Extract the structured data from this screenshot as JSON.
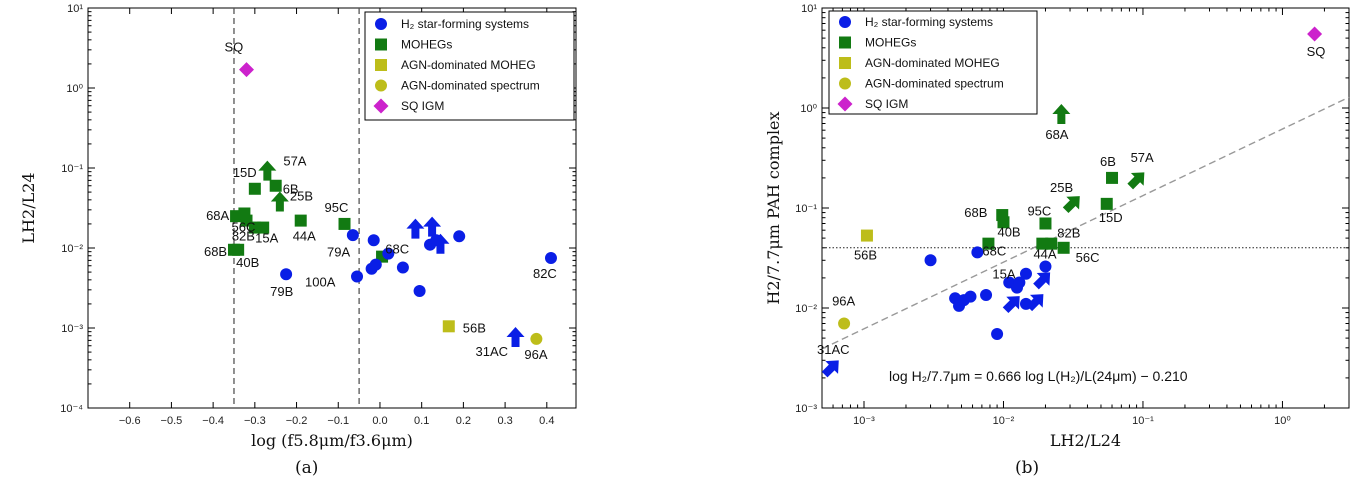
{
  "captions": {
    "a": "(a)",
    "b": "(b)"
  },
  "colors": {
    "blue": "#0a1ee6",
    "green": "#127a12",
    "yellow": "#bdbd1a",
    "magenta": "#cc22cc",
    "dashed": "#888888"
  },
  "legend_a": [
    {
      "marker": "circle",
      "color": "blue",
      "label": "H₂ star-forming systems"
    },
    {
      "marker": "square",
      "color": "green",
      "label": "MOHEGs"
    },
    {
      "marker": "square",
      "color": "yellow",
      "label": "AGN-dominated MOHEG"
    },
    {
      "marker": "circle",
      "color": "yellow",
      "label": "AGN-dominated spectrum"
    },
    {
      "marker": "diamond",
      "color": "magenta",
      "label": "SQ IGM"
    }
  ],
  "legend_b": [
    {
      "marker": "circle",
      "color": "blue",
      "label": "H₂ star-forming systems"
    },
    {
      "marker": "square",
      "color": "green",
      "label": "MOHEGs"
    },
    {
      "marker": "square",
      "color": "yellow",
      "label": "AGN-dominated MOHEG"
    },
    {
      "marker": "circle",
      "color": "yellow",
      "label": "AGN-dominated spectrum"
    },
    {
      "marker": "diamond",
      "color": "magenta",
      "label": "SQ IGM"
    }
  ],
  "chart_data": [
    {
      "type": "scatter",
      "panel": "a",
      "xlabel": "log (f5.8μm/f3.6μm)",
      "ylabel": "LH2/L24",
      "xlim": [
        -0.7,
        0.47
      ],
      "ylim": [
        0.0001,
        10
      ],
      "yscale": "log",
      "xticks": [
        "-0.6",
        "-0.5",
        "-0.4",
        "-0.3",
        "-0.2",
        "-0.1",
        "0.0",
        "0.1",
        "0.2",
        "0.3",
        "0.4"
      ],
      "yticks": [
        "10⁻⁴",
        "10⁻³",
        "10⁻²",
        "10⁻¹",
        "10⁰",
        "10¹"
      ],
      "vlines": [
        -0.35,
        -0.05
      ],
      "legend_position": "top-right",
      "points": [
        {
          "g": "green",
          "m": "square",
          "x": -0.345,
          "y": 0.025,
          "label": "68A"
        },
        {
          "g": "green",
          "m": "square",
          "x": -0.325,
          "y": 0.027,
          "label": ""
        },
        {
          "g": "green",
          "m": "square",
          "x": -0.3,
          "y": 0.055,
          "label": "15D"
        },
        {
          "g": "green",
          "m": "square",
          "x": -0.32,
          "y": 0.022,
          "label": "56C"
        },
        {
          "g": "green",
          "m": "square",
          "x": -0.3,
          "y": 0.018,
          "label": "82B"
        },
        {
          "g": "green",
          "m": "square",
          "x": -0.28,
          "y": 0.018,
          "label": "15A"
        },
        {
          "g": "green",
          "m": "square",
          "x": -0.25,
          "y": 0.06,
          "label": "6B"
        },
        {
          "g": "green",
          "m": "square",
          "x": -0.35,
          "y": 0.0095,
          "label": "68B"
        },
        {
          "g": "green",
          "m": "square",
          "x": -0.34,
          "y": 0.0095,
          "label": "40B"
        },
        {
          "g": "green",
          "m": "square",
          "x": -0.19,
          "y": 0.022,
          "label": "44A"
        },
        {
          "g": "green",
          "m": "square",
          "x": -0.085,
          "y": 0.02,
          "label": "95C"
        },
        {
          "g": "green",
          "m": "square",
          "x": 0.005,
          "y": 0.0078,
          "label": "79A"
        },
        {
          "g": "blue",
          "m": "circle",
          "x": -0.225,
          "y": 0.0047,
          "label": "79B"
        },
        {
          "g": "blue",
          "m": "circle",
          "x": -0.065,
          "y": 0.0145,
          "label": ""
        },
        {
          "g": "blue",
          "m": "circle",
          "x": -0.055,
          "y": 0.0044,
          "label": "100A"
        },
        {
          "g": "blue",
          "m": "circle",
          "x": -0.015,
          "y": 0.0125,
          "label": ""
        },
        {
          "g": "blue",
          "m": "circle",
          "x": -0.02,
          "y": 0.0055,
          "label": ""
        },
        {
          "g": "blue",
          "m": "circle",
          "x": -0.01,
          "y": 0.0062,
          "label": ""
        },
        {
          "g": "blue",
          "m": "circle",
          "x": 0.02,
          "y": 0.0085,
          "label": "68C"
        },
        {
          "g": "blue",
          "m": "circle",
          "x": 0.055,
          "y": 0.0057,
          "label": ""
        },
        {
          "g": "blue",
          "m": "circle",
          "x": 0.095,
          "y": 0.0029,
          "label": ""
        },
        {
          "g": "blue",
          "m": "circle",
          "x": 0.12,
          "y": 0.011,
          "label": ""
        },
        {
          "g": "blue",
          "m": "circle",
          "x": 0.135,
          "y": 0.0125,
          "label": ""
        },
        {
          "g": "blue",
          "m": "circle",
          "x": 0.19,
          "y": 0.014,
          "label": ""
        },
        {
          "g": "blue",
          "m": "circle",
          "x": 0.41,
          "y": 0.0075,
          "label": "82C"
        },
        {
          "g": "yellow",
          "m": "square",
          "x": 0.165,
          "y": 0.00105,
          "label": "56B"
        },
        {
          "g": "yellow",
          "m": "circle",
          "x": 0.375,
          "y": 0.00073,
          "label": "96A"
        },
        {
          "g": "magenta",
          "m": "diamond",
          "x": -0.32,
          "y": 1.7,
          "label": "SQ"
        }
      ],
      "limits": [
        {
          "g": "green",
          "x": -0.27,
          "y": 0.09,
          "dir": "up",
          "label": "57A"
        },
        {
          "g": "green",
          "x": -0.24,
          "y": 0.037,
          "dir": "up",
          "label": "25B"
        },
        {
          "g": "blue",
          "x": 0.085,
          "y": 0.017,
          "dir": "up",
          "label": ""
        },
        {
          "g": "blue",
          "x": 0.125,
          "y": 0.018,
          "dir": "up",
          "label": ""
        },
        {
          "g": "blue",
          "x": 0.145,
          "y": 0.011,
          "dir": "up",
          "label": ""
        },
        {
          "g": "blue",
          "x": 0.325,
          "y": 0.00075,
          "dir": "up",
          "label": "31AC"
        }
      ]
    },
    {
      "type": "scatter",
      "panel": "b",
      "xlabel": "LH2/L24",
      "ylabel": "H2/7.7μm PAH complex",
      "xscale": "log",
      "yscale": "log",
      "xlim": [
        0.0005,
        3
      ],
      "ylim": [
        0.001,
        10
      ],
      "xticks": [
        "10⁻³",
        "10⁻²",
        "10⁻¹",
        "10⁰"
      ],
      "yticks": [
        "10⁻³",
        "10⁻²",
        "10⁻¹",
        "10⁰",
        "10¹"
      ],
      "hline": 0.04,
      "fit": {
        "slope": 0.666,
        "intercept": -0.21
      },
      "equation": "log H₂/7.7μm = 0.666 log L(H₂)/L(24μm) − 0.210",
      "legend_position": "top-left",
      "points": [
        {
          "g": "green",
          "m": "square",
          "x": 0.0098,
          "y": 0.085,
          "label": "68B"
        },
        {
          "g": "green",
          "m": "square",
          "x": 0.01,
          "y": 0.072,
          "label": "40B"
        },
        {
          "g": "green",
          "m": "square",
          "x": 0.0078,
          "y": 0.044,
          "label": "68C"
        },
        {
          "g": "green",
          "m": "square",
          "x": 0.02,
          "y": 0.07,
          "label": "95C"
        },
        {
          "g": "green",
          "m": "square",
          "x": 0.019,
          "y": 0.044,
          "label": ""
        },
        {
          "g": "green",
          "m": "square",
          "x": 0.022,
          "y": 0.044,
          "label": "82B"
        },
        {
          "g": "green",
          "m": "square",
          "x": 0.027,
          "y": 0.04,
          "label": "56C"
        },
        {
          "g": "green",
          "m": "square",
          "x": 0.06,
          "y": 0.2,
          "label": "6B"
        },
        {
          "g": "green",
          "m": "square",
          "x": 0.055,
          "y": 0.11,
          "label": "15D"
        },
        {
          "g": "blue",
          "m": "circle",
          "x": 0.003,
          "y": 0.03,
          "label": ""
        },
        {
          "g": "blue",
          "m": "circle",
          "x": 0.0065,
          "y": 0.036,
          "label": ""
        },
        {
          "g": "blue",
          "m": "circle",
          "x": 0.0045,
          "y": 0.0125,
          "label": ""
        },
        {
          "g": "blue",
          "m": "circle",
          "x": 0.0048,
          "y": 0.0105,
          "label": ""
        },
        {
          "g": "blue",
          "m": "circle",
          "x": 0.0052,
          "y": 0.012,
          "label": ""
        },
        {
          "g": "blue",
          "m": "circle",
          "x": 0.0058,
          "y": 0.013,
          "label": ""
        },
        {
          "g": "blue",
          "m": "circle",
          "x": 0.0075,
          "y": 0.0135,
          "label": ""
        },
        {
          "g": "blue",
          "m": "circle",
          "x": 0.009,
          "y": 0.0055,
          "label": ""
        },
        {
          "g": "blue",
          "m": "circle",
          "x": 0.011,
          "y": 0.018,
          "label": ""
        },
        {
          "g": "blue",
          "m": "circle",
          "x": 0.0125,
          "y": 0.016,
          "label": ""
        },
        {
          "g": "blue",
          "m": "circle",
          "x": 0.013,
          "y": 0.018,
          "label": "15A"
        },
        {
          "g": "blue",
          "m": "circle",
          "x": 0.0145,
          "y": 0.022,
          "label": ""
        },
        {
          "g": "blue",
          "m": "circle",
          "x": 0.0145,
          "y": 0.011,
          "label": ""
        },
        {
          "g": "blue",
          "m": "circle",
          "x": 0.02,
          "y": 0.026,
          "label": "44A"
        },
        {
          "g": "yellow",
          "m": "square",
          "x": 0.00105,
          "y": 0.053,
          "label": "56B"
        },
        {
          "g": "yellow",
          "m": "circle",
          "x": 0.00072,
          "y": 0.007,
          "label": "96A"
        },
        {
          "g": "magenta",
          "m": "diamond",
          "x": 1.7,
          "y": 5.5,
          "label": "SQ"
        }
      ],
      "limits": [
        {
          "g": "green",
          "x": 0.026,
          "y": 0.85,
          "dir": "up",
          "label": "68A"
        },
        {
          "g": "green",
          "x": 0.031,
          "y": 0.11,
          "dir": "upright",
          "label": "25B"
        },
        {
          "g": "green",
          "x": 0.09,
          "y": 0.19,
          "dir": "upright",
          "label": "57A"
        },
        {
          "g": "blue",
          "x": 0.0115,
          "y": 0.011,
          "dir": "upright",
          "label": ""
        },
        {
          "g": "blue",
          "x": 0.017,
          "y": 0.0115,
          "dir": "upright",
          "label": ""
        },
        {
          "g": "blue",
          "x": 0.019,
          "y": 0.019,
          "dir": "upright",
          "label": ""
        },
        {
          "g": "blue",
          "x": 0.00058,
          "y": 0.0025,
          "dir": "upright",
          "label": "31AC"
        }
      ]
    }
  ]
}
